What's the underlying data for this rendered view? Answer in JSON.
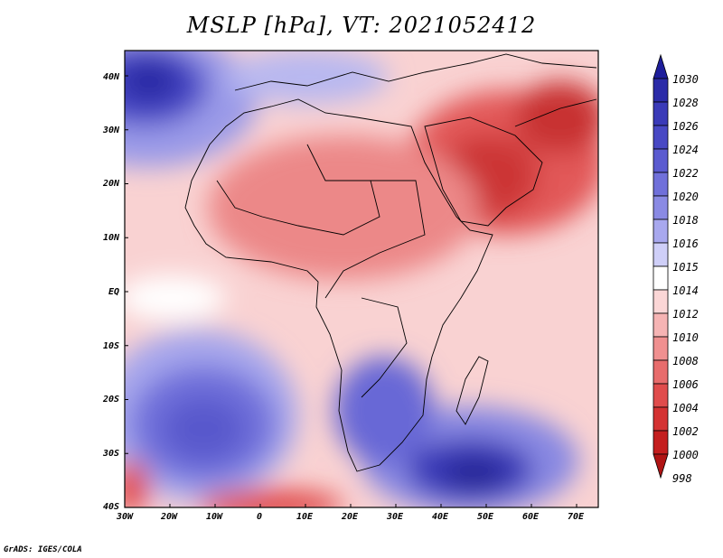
{
  "title": "MSLP [hPa], VT: 2021052412",
  "footer": "GrADS: IGES/COLA",
  "axes": {
    "lat_labels": [
      "40N",
      "30N",
      "20N",
      "10N",
      "EQ",
      "10S",
      "20S",
      "30S",
      "40S"
    ],
    "lon_labels": [
      "30W",
      "20W",
      "10W",
      "0",
      "10E",
      "20E",
      "30E",
      "40E",
      "50E",
      "60E",
      "70E"
    ]
  },
  "colorbar": {
    "levels": [
      "1030",
      "1028",
      "1026",
      "1024",
      "1022",
      "1020",
      "1018",
      "1016",
      "1015",
      "1014",
      "1012",
      "1010",
      "1008",
      "1006",
      "1004",
      "1002",
      "1000",
      "998"
    ],
    "colors": [
      "#1e1e9b",
      "#2b2ba8",
      "#3a3ab8",
      "#4848c4",
      "#5b5bd0",
      "#7070da",
      "#8a8ae4",
      "#a8a8ee",
      "#cfcff8",
      "#ffffff",
      "#fbd6d6",
      "#f6b4b4",
      "#f09090",
      "#e86c6c",
      "#e04c4c",
      "#d43232",
      "#c41e1e",
      "#b01414"
    ]
  },
  "colors": {
    "high_pressure": "#3a3ab8",
    "low_pressure": "#c83838",
    "neutral": "#ffffff",
    "coastline": "#000000"
  }
}
